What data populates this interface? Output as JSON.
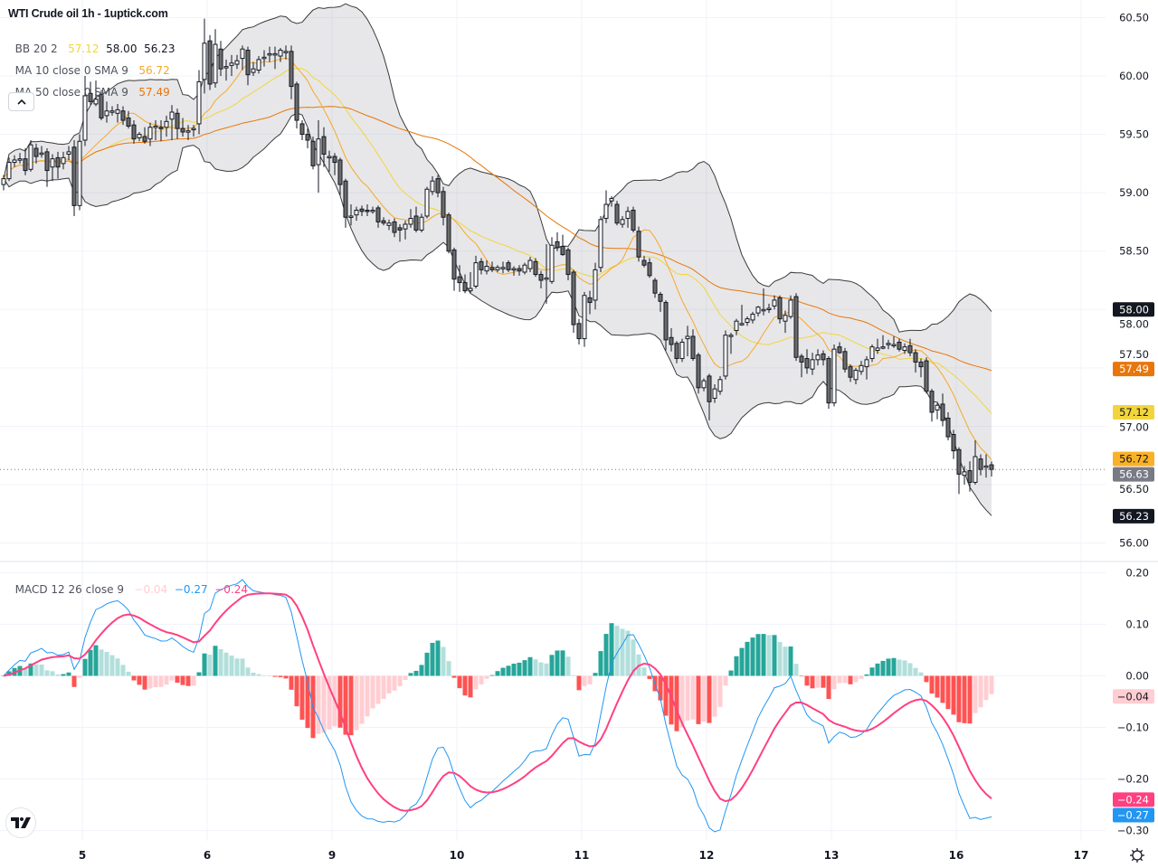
{
  "header": {
    "title": "WTI Crude oil  1h - 1uptick.com"
  },
  "legend": {
    "bb": {
      "label": "BB 20 2",
      "basis": "57.12",
      "upper": "58.00",
      "lower": "56.23"
    },
    "ma10": {
      "label": "MA 10 close 0 SMA 9",
      "value": "56.72"
    },
    "ma50": {
      "label": "MA 50 close 0 SMA 9",
      "value": "57.49"
    },
    "macd": {
      "label": "MACD 12 26 close 9",
      "histogram": "−0.04",
      "macd": "−0.27",
      "signal": "−0.24"
    }
  },
  "colors": {
    "bb_basis": "#f2d53c",
    "bb_band": "#3b3b3b",
    "ma10": "#f5a829",
    "ma50": "#e8760a",
    "up_candle": "#ffffff",
    "down_candle": "#6b6b6b",
    "macd_line": "#2196f3",
    "signal_line": "#ff4081",
    "hist_pos_grow": "#26a69a",
    "hist_pos_fall": "#b2dfdb",
    "hist_neg_fall": "#ff5252",
    "hist_neg_rise": "#ffcdd2"
  },
  "icons": {
    "collapse": "chevron-up-icon",
    "logo": "tradingview-logo",
    "settings": "gear-icon"
  },
  "chart_data": {
    "type": "candlestick",
    "symbol": "WTI Crude oil",
    "interval": "1h",
    "price_axis": {
      "ticks": [
        "60.50",
        "60.00",
        "59.50",
        "59.00",
        "58.50",
        "58.00",
        "57.50",
        "57.00",
        "56.50",
        "56.00"
      ],
      "range": [
        55.85,
        60.65
      ]
    },
    "price_badges": [
      {
        "text": "58.00",
        "value": 58.0,
        "bg": "#131722",
        "fg": "#ffffff"
      },
      {
        "text": "57.49",
        "value": 57.49,
        "bg": "#e8760a",
        "fg": "#ffffff"
      },
      {
        "text": "57.12",
        "value": 57.12,
        "bg": "#f2d53c",
        "fg": "#131722"
      },
      {
        "text": "56.72",
        "value": 56.72,
        "bg": "#f9b128",
        "fg": "#131722"
      },
      {
        "text": "56.63",
        "value": 56.63,
        "bg": "#787b86",
        "fg": "#ffffff"
      },
      {
        "text": "56.23",
        "value": 56.23,
        "bg": "#131722",
        "fg": "#ffffff"
      }
    ],
    "last_price": 56.63,
    "macd_axis": {
      "ticks": [
        "0.20",
        "0.10",
        "0.00",
        "−0.10",
        "−0.20",
        "−0.30"
      ],
      "range": [
        -0.32,
        0.22
      ]
    },
    "macd_badges": [
      {
        "text": "−0.04",
        "value": -0.04,
        "bg": "#ffcdd2",
        "fg": "#131722"
      },
      {
        "text": "−0.24",
        "value": -0.24,
        "bg": "#ff4081",
        "fg": "#ffffff"
      },
      {
        "text": "−0.27",
        "value": -0.27,
        "bg": "#2196f3",
        "fg": "#ffffff"
      }
    ],
    "x_axis": {
      "labels": [
        {
          "text": "5",
          "bar": 15
        },
        {
          "text": "6",
          "bar": 38
        },
        {
          "text": "9",
          "bar": 61
        },
        {
          "text": "10",
          "bar": 84
        },
        {
          "text": "11",
          "bar": 107
        },
        {
          "text": "12",
          "bar": 130
        },
        {
          "text": "13",
          "bar": 153
        },
        {
          "text": "16",
          "bar": 176
        },
        {
          "text": "17",
          "bar": 199
        }
      ]
    },
    "indicators": {
      "bb": {
        "length": 20,
        "mult": 2
      },
      "ma_fast": 10,
      "ma_slow": 50,
      "macd": {
        "fast": 12,
        "slow": 26,
        "signal": 9
      }
    },
    "candles_ohlc": [
      [
        59.07,
        59.15,
        59.02,
        59.12
      ],
      [
        59.12,
        59.3,
        59.1,
        59.26
      ],
      [
        59.26,
        59.32,
        59.22,
        59.28
      ],
      [
        59.28,
        59.34,
        59.25,
        59.29
      ],
      [
        59.29,
        59.38,
        59.15,
        59.19
      ],
      [
        59.2,
        59.45,
        59.18,
        59.41
      ],
      [
        59.38,
        59.42,
        59.25,
        59.31
      ],
      [
        59.33,
        59.4,
        59.3,
        59.34
      ],
      [
        59.35,
        59.38,
        59.05,
        59.19
      ],
      [
        59.22,
        59.33,
        59.1,
        59.29
      ],
      [
        59.3,
        59.35,
        59.12,
        59.22
      ],
      [
        59.25,
        59.35,
        59.2,
        59.3
      ],
      [
        59.33,
        59.4,
        59.28,
        59.35
      ],
      [
        59.39,
        59.45,
        58.8,
        58.89
      ],
      [
        58.89,
        59.5,
        58.85,
        59.44
      ],
      [
        59.45,
        60.0,
        59.4,
        59.83
      ],
      [
        59.85,
        59.95,
        59.75,
        59.78
      ],
      [
        59.76,
        59.96,
        59.74,
        59.8
      ],
      [
        59.84,
        59.88,
        59.62,
        59.64
      ],
      [
        59.66,
        59.78,
        59.6,
        59.7
      ],
      [
        59.7,
        59.74,
        59.66,
        59.7
      ],
      [
        59.68,
        59.76,
        59.6,
        59.71
      ],
      [
        59.7,
        59.74,
        59.58,
        59.62
      ],
      [
        59.64,
        59.7,
        59.55,
        59.57
      ],
      [
        59.58,
        59.62,
        59.42,
        59.46
      ],
      [
        59.47,
        59.52,
        59.44,
        59.5
      ],
      [
        59.48,
        59.56,
        59.42,
        59.44
      ],
      [
        59.46,
        59.6,
        59.4,
        59.56
      ],
      [
        59.56,
        59.62,
        59.45,
        59.57
      ],
      [
        59.56,
        59.62,
        59.44,
        59.55
      ],
      [
        59.56,
        59.66,
        59.48,
        59.61
      ],
      [
        59.63,
        59.75,
        59.45,
        59.69
      ],
      [
        59.68,
        59.72,
        59.46,
        59.55
      ],
      [
        59.55,
        59.64,
        59.48,
        59.52
      ],
      [
        59.53,
        59.58,
        59.45,
        59.53
      ],
      [
        59.54,
        59.58,
        59.48,
        59.55
      ],
      [
        59.59,
        60.05,
        59.5,
        59.95
      ],
      [
        59.97,
        60.49,
        59.85,
        60.28
      ],
      [
        60.3,
        60.35,
        59.88,
        59.93
      ],
      [
        59.94,
        60.4,
        59.9,
        60.27
      ],
      [
        60.23,
        60.3,
        60.0,
        60.06
      ],
      [
        60.07,
        60.14,
        59.96,
        60.08
      ],
      [
        60.09,
        60.18,
        60.0,
        60.11
      ],
      [
        60.1,
        60.18,
        60.06,
        60.13
      ],
      [
        60.15,
        60.26,
        60.05,
        60.23
      ],
      [
        60.22,
        60.25,
        59.92,
        60.01
      ],
      [
        60.03,
        60.12,
        60.0,
        60.06
      ],
      [
        60.05,
        60.17,
        60.02,
        60.14
      ],
      [
        60.15,
        60.22,
        60.08,
        60.16
      ],
      [
        60.18,
        60.25,
        60.12,
        60.19
      ],
      [
        60.19,
        60.25,
        60.06,
        60.19
      ],
      [
        60.17,
        60.24,
        60.12,
        60.22
      ],
      [
        60.21,
        60.26,
        60.14,
        60.21
      ],
      [
        60.21,
        60.26,
        59.8,
        59.91
      ],
      [
        59.93,
        59.95,
        59.55,
        59.62
      ],
      [
        59.59,
        59.62,
        59.45,
        59.5
      ],
      [
        59.5,
        59.55,
        59.38,
        59.45
      ],
      [
        59.44,
        59.48,
        59.2,
        59.23
      ],
      [
        59.24,
        59.62,
        59.0,
        59.46
      ],
      [
        59.48,
        59.56,
        59.22,
        59.33
      ],
      [
        59.31,
        59.36,
        59.18,
        59.31
      ],
      [
        59.31,
        59.34,
        59.15,
        59.26
      ],
      [
        59.28,
        59.3,
        58.98,
        59.07
      ],
      [
        59.1,
        59.12,
        58.7,
        58.79
      ],
      [
        58.8,
        58.9,
        58.72,
        58.8
      ],
      [
        58.81,
        58.88,
        58.76,
        58.85
      ],
      [
        58.86,
        58.89,
        58.8,
        58.84
      ],
      [
        58.85,
        58.9,
        58.8,
        58.84
      ],
      [
        58.85,
        58.88,
        58.82,
        58.85
      ],
      [
        58.87,
        58.89,
        58.7,
        58.75
      ],
      [
        58.76,
        58.79,
        58.72,
        58.74
      ],
      [
        58.72,
        58.77,
        58.68,
        58.74
      ],
      [
        58.75,
        58.78,
        58.62,
        58.66
      ],
      [
        58.7,
        58.73,
        58.58,
        58.68
      ],
      [
        58.69,
        58.76,
        58.6,
        58.73
      ],
      [
        58.73,
        58.86,
        58.7,
        58.78
      ],
      [
        58.8,
        58.88,
        58.66,
        58.68
      ],
      [
        58.68,
        58.82,
        58.66,
        58.79
      ],
      [
        58.8,
        59.05,
        58.78,
        59.03
      ],
      [
        59.01,
        59.14,
        58.98,
        59.1
      ],
      [
        59.12,
        59.15,
        58.96,
        59.0
      ],
      [
        59.01,
        59.05,
        58.72,
        58.79
      ],
      [
        58.81,
        58.83,
        58.48,
        58.5
      ],
      [
        58.51,
        58.53,
        58.16,
        58.26
      ],
      [
        58.28,
        58.38,
        58.15,
        58.23
      ],
      [
        58.23,
        58.3,
        58.14,
        58.16
      ],
      [
        58.16,
        58.32,
        58.14,
        58.18
      ],
      [
        58.2,
        58.46,
        58.18,
        58.4
      ],
      [
        58.41,
        58.44,
        58.3,
        58.34
      ],
      [
        58.33,
        58.42,
        58.3,
        58.37
      ],
      [
        58.36,
        58.41,
        58.32,
        58.34
      ],
      [
        58.34,
        58.38,
        58.32,
        58.36
      ],
      [
        58.36,
        58.41,
        58.31,
        58.36
      ],
      [
        58.4,
        58.42,
        58.32,
        58.34
      ],
      [
        58.35,
        58.37,
        58.29,
        58.35
      ],
      [
        58.35,
        58.38,
        58.29,
        58.33
      ],
      [
        58.32,
        58.4,
        58.3,
        58.38
      ],
      [
        58.35,
        58.45,
        58.32,
        58.42
      ],
      [
        58.41,
        58.44,
        58.28,
        58.3
      ],
      [
        58.3,
        58.33,
        58.18,
        58.25
      ],
      [
        58.27,
        58.56,
        58.05,
        58.27
      ],
      [
        58.24,
        58.62,
        58.22,
        58.55
      ],
      [
        58.58,
        58.66,
        58.5,
        58.53
      ],
      [
        58.54,
        58.64,
        58.46,
        58.47
      ],
      [
        58.51,
        58.53,
        58.25,
        58.3
      ],
      [
        58.32,
        58.34,
        57.8,
        57.87
      ],
      [
        57.88,
        57.92,
        57.7,
        57.75
      ],
      [
        57.75,
        58.15,
        57.68,
        58.12
      ],
      [
        58.1,
        58.16,
        57.96,
        58.06
      ],
      [
        58.08,
        58.4,
        58.0,
        58.34
      ],
      [
        58.36,
        58.8,
        58.32,
        58.77
      ],
      [
        58.78,
        59.02,
        58.74,
        58.9
      ],
      [
        58.93,
        58.97,
        58.88,
        58.95
      ],
      [
        58.9,
        58.93,
        58.72,
        58.74
      ],
      [
        58.73,
        58.8,
        58.7,
        58.77
      ],
      [
        58.78,
        58.88,
        58.7,
        58.84
      ],
      [
        58.85,
        58.88,
        58.66,
        58.68
      ],
      [
        58.67,
        58.71,
        58.41,
        58.45
      ],
      [
        58.42,
        58.46,
        58.36,
        58.38
      ],
      [
        58.4,
        58.44,
        58.27,
        58.29
      ],
      [
        58.25,
        58.27,
        58.1,
        58.14
      ],
      [
        58.13,
        58.15,
        57.98,
        58.07
      ],
      [
        58.06,
        58.08,
        57.65,
        57.74
      ],
      [
        57.76,
        57.84,
        57.64,
        57.7
      ],
      [
        57.71,
        57.73,
        57.54,
        57.58
      ],
      [
        57.58,
        57.75,
        57.55,
        57.72
      ],
      [
        57.75,
        57.86,
        57.6,
        57.77
      ],
      [
        57.77,
        57.83,
        57.56,
        57.58
      ],
      [
        57.61,
        57.63,
        57.28,
        57.33
      ],
      [
        57.33,
        57.41,
        57.3,
        57.39
      ],
      [
        57.43,
        57.45,
        57.05,
        57.21
      ],
      [
        57.24,
        57.36,
        57.2,
        57.32
      ],
      [
        57.3,
        57.43,
        57.27,
        57.4
      ],
      [
        57.43,
        57.82,
        57.4,
        57.78
      ],
      [
        57.77,
        57.8,
        57.62,
        57.78
      ],
      [
        57.82,
        57.92,
        57.78,
        57.9
      ],
      [
        57.88,
        58.04,
        57.86,
        57.88
      ],
      [
        57.89,
        57.94,
        57.86,
        57.92
      ],
      [
        57.91,
        57.98,
        57.88,
        57.96
      ],
      [
        57.97,
        58.03,
        57.94,
        58.02
      ],
      [
        58.0,
        58.18,
        57.95,
        58.0
      ],
      [
        58.01,
        58.05,
        57.97,
        58.01
      ],
      [
        58.03,
        58.12,
        58.0,
        58.08
      ],
      [
        58.1,
        58.12,
        57.88,
        57.92
      ],
      [
        57.9,
        57.99,
        57.8,
        57.95
      ],
      [
        57.94,
        58.12,
        57.92,
        58.08
      ],
      [
        58.11,
        58.14,
        57.56,
        57.59
      ],
      [
        57.6,
        57.62,
        57.42,
        57.55
      ],
      [
        57.58,
        57.66,
        57.45,
        57.5
      ],
      [
        57.49,
        57.63,
        57.44,
        57.57
      ],
      [
        57.57,
        57.66,
        57.52,
        57.61
      ],
      [
        57.62,
        57.65,
        57.52,
        57.57
      ],
      [
        57.58,
        57.6,
        57.15,
        57.2
      ],
      [
        57.2,
        57.7,
        57.17,
        57.66
      ],
      [
        57.68,
        57.72,
        57.62,
        57.63
      ],
      [
        57.64,
        57.67,
        57.46,
        57.49
      ],
      [
        57.51,
        57.53,
        57.38,
        57.42
      ],
      [
        57.4,
        57.5,
        57.36,
        57.48
      ],
      [
        57.47,
        57.56,
        57.44,
        57.52
      ],
      [
        57.51,
        57.6,
        57.4,
        57.57
      ],
      [
        57.58,
        57.7,
        57.55,
        57.68
      ],
      [
        57.65,
        57.75,
        57.62,
        57.67
      ],
      [
        57.68,
        57.78,
        57.66,
        57.68
      ],
      [
        57.7,
        57.74,
        57.66,
        57.71
      ],
      [
        57.7,
        57.77,
        57.67,
        57.7
      ],
      [
        57.72,
        57.75,
        57.64,
        57.66
      ],
      [
        57.65,
        57.71,
        57.62,
        57.68
      ],
      [
        57.69,
        57.75,
        57.6,
        57.63
      ],
      [
        57.63,
        57.66,
        57.46,
        57.55
      ],
      [
        57.55,
        57.58,
        57.42,
        57.51
      ],
      [
        57.56,
        57.59,
        57.28,
        57.3
      ],
      [
        57.3,
        57.32,
        57.04,
        57.12
      ],
      [
        57.14,
        57.2,
        57.06,
        57.18
      ],
      [
        57.19,
        57.28,
        57.0,
        57.05
      ],
      [
        57.07,
        57.12,
        56.88,
        56.91
      ],
      [
        56.93,
        56.97,
        56.72,
        56.79
      ],
      [
        56.8,
        56.82,
        56.42,
        56.59
      ],
      [
        56.58,
        56.66,
        56.5,
        56.61
      ],
      [
        56.62,
        56.7,
        56.44,
        56.52
      ],
      [
        56.52,
        56.88,
        56.5,
        56.74
      ],
      [
        56.72,
        56.76,
        56.58,
        56.63
      ],
      [
        56.66,
        56.76,
        56.56,
        56.66
      ],
      [
        56.67,
        56.7,
        56.57,
        56.63
      ]
    ]
  }
}
